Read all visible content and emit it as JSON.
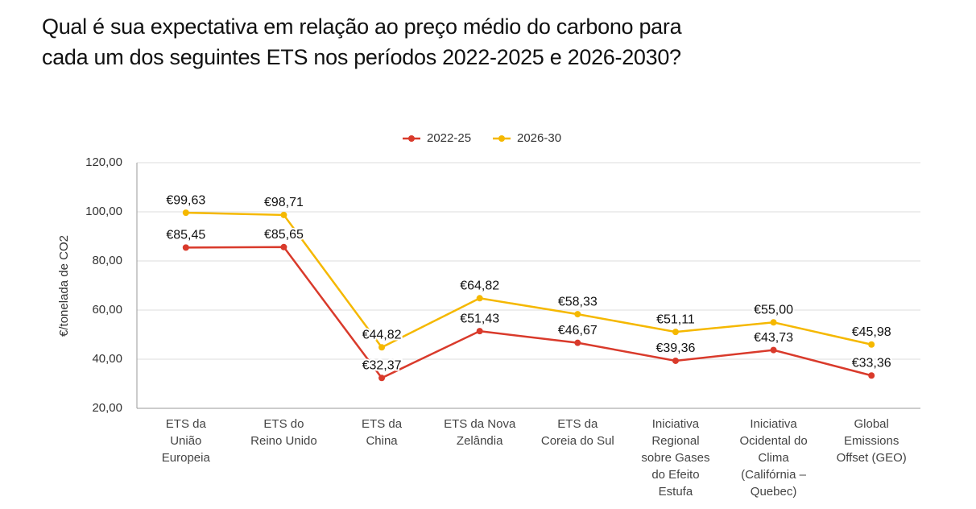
{
  "chart_data": {
    "type": "line",
    "title": "Qual é sua expectativa em relação ao preço médio do carbono para\ncada um dos seguintes ETS nos períodos 2022-2025 e 2026-2030?",
    "y_label": "€/tonelada de CO2",
    "categories": [
      "ETS da\nUnião\nEuropeia",
      "ETS do\nReino Unido",
      "ETS da\nChina",
      "ETS da Nova\nZelândia",
      "ETS da\nCoreia do Sul",
      "Iniciativa\nRegional\nsobre Gases\ndo Efeito\nEstufa",
      "Iniciativa\nOcidental do\nClima\n(Califórnia –\nQuebec)",
      "Global\nEmissions\nOffset (GEO)"
    ],
    "series": [
      {
        "name": "2022-25",
        "color": "#d93a2b",
        "values": [
          85.45,
          85.65,
          32.37,
          51.43,
          46.67,
          39.36,
          43.73,
          33.36
        ],
        "value_labels": [
          "€85,45",
          "€85,65",
          "€32,37",
          "€51,43",
          "€46,67",
          "€39,36",
          "€43,73",
          "€33,36"
        ]
      },
      {
        "name": "2026-30",
        "color": "#f5b800",
        "values": [
          99.63,
          98.71,
          44.82,
          64.82,
          58.33,
          51.11,
          55.0,
          45.98
        ],
        "value_labels": [
          "€99,63",
          "€98,71",
          "€44,82",
          "€64,82",
          "€58,33",
          "€51,11",
          "€55,00",
          "€45,98"
        ]
      }
    ],
    "ylim": [
      20,
      120
    ],
    "yticks": [
      {
        "value": 20,
        "label": "20,00"
      },
      {
        "value": 40,
        "label": "40,00"
      },
      {
        "value": 60,
        "label": "60,00"
      },
      {
        "value": 80,
        "label": "80,00"
      },
      {
        "value": 100,
        "label": "100,00"
      },
      {
        "value": 120,
        "label": "120,00"
      }
    ],
    "grid": true,
    "legend": "top"
  }
}
